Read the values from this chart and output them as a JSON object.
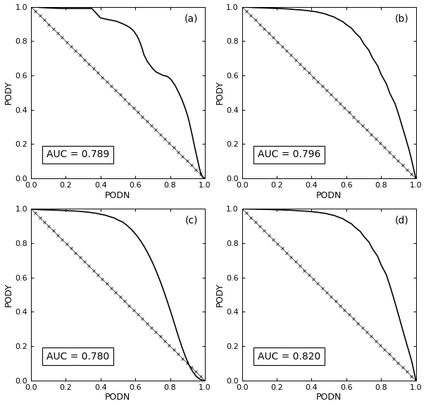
{
  "auc_values": [
    0.789,
    0.796,
    0.78,
    0.82
  ],
  "panel_labels": [
    "(a)",
    "(b)",
    "(c)",
    "(d)"
  ],
  "xlabel": "PODN",
  "ylabel": "PODY",
  "curve_color": "#000000",
  "diag_color": "#333333",
  "background_color": "#ffffff",
  "label_fontsize": 9,
  "tick_fontsize": 8,
  "panel_fontsize": 10,
  "auc_fontsize": 10,
  "curves": {
    "a": {
      "x": [
        0.0,
        0.01,
        0.02,
        0.03,
        0.05,
        0.08,
        0.1,
        0.12,
        0.15,
        0.18,
        0.2,
        0.25,
        0.3,
        0.35,
        0.4,
        0.43,
        0.45,
        0.46,
        0.47,
        0.48,
        0.49,
        0.5,
        0.51,
        0.52,
        0.53,
        0.55,
        0.57,
        0.59,
        0.6,
        0.61,
        0.62,
        0.63,
        0.64,
        0.65,
        0.67,
        0.7,
        0.72,
        0.74,
        0.75,
        0.76,
        0.77,
        0.78,
        0.79,
        0.8,
        0.81,
        0.82,
        0.83,
        0.84,
        0.85,
        0.86,
        0.87,
        0.88,
        0.89,
        0.9,
        0.91,
        0.92,
        0.93,
        0.94,
        0.95,
        0.96,
        0.97,
        0.98,
        0.99,
        1.0
      ],
      "y": [
        1.0,
        1.0,
        1.0,
        0.998,
        0.996,
        0.994,
        0.993,
        0.992,
        0.991,
        0.99,
        0.99,
        0.99,
        0.99,
        0.99,
        0.935,
        0.928,
        0.924,
        0.922,
        0.92,
        0.918,
        0.916,
        0.912,
        0.908,
        0.904,
        0.9,
        0.89,
        0.878,
        0.86,
        0.845,
        0.83,
        0.81,
        0.785,
        0.755,
        0.72,
        0.68,
        0.64,
        0.62,
        0.61,
        0.605,
        0.6,
        0.598,
        0.596,
        0.59,
        0.582,
        0.57,
        0.555,
        0.54,
        0.52,
        0.5,
        0.478,
        0.455,
        0.428,
        0.4,
        0.368,
        0.33,
        0.285,
        0.24,
        0.19,
        0.145,
        0.1,
        0.055,
        0.02,
        0.005,
        0.0
      ]
    },
    "b": {
      "x": [
        0.0,
        0.01,
        0.02,
        0.03,
        0.05,
        0.07,
        0.1,
        0.13,
        0.15,
        0.18,
        0.2,
        0.23,
        0.25,
        0.28,
        0.3,
        0.33,
        0.35,
        0.38,
        0.4,
        0.43,
        0.45,
        0.48,
        0.5,
        0.53,
        0.55,
        0.58,
        0.6,
        0.63,
        0.65,
        0.68,
        0.7,
        0.73,
        0.75,
        0.78,
        0.8,
        0.83,
        0.85,
        0.88,
        0.9,
        0.92,
        0.94,
        0.95,
        0.96,
        0.97,
        0.98,
        0.99,
        1.0
      ],
      "y": [
        1.0,
        0.999,
        0.998,
        0.997,
        0.996,
        0.995,
        0.994,
        0.993,
        0.992,
        0.991,
        0.99,
        0.989,
        0.988,
        0.986,
        0.984,
        0.982,
        0.98,
        0.977,
        0.974,
        0.97,
        0.965,
        0.958,
        0.95,
        0.94,
        0.928,
        0.913,
        0.896,
        0.875,
        0.85,
        0.82,
        0.785,
        0.746,
        0.703,
        0.656,
        0.606,
        0.552,
        0.496,
        0.436,
        0.375,
        0.308,
        0.24,
        0.205,
        0.17,
        0.13,
        0.088,
        0.042,
        0.0
      ]
    },
    "c": {
      "x": [
        0.0,
        0.01,
        0.02,
        0.03,
        0.05,
        0.07,
        0.1,
        0.13,
        0.15,
        0.18,
        0.2,
        0.23,
        0.25,
        0.28,
        0.3,
        0.33,
        0.35,
        0.38,
        0.4,
        0.43,
        0.45,
        0.48,
        0.5,
        0.53,
        0.55,
        0.57,
        0.59,
        0.61,
        0.63,
        0.65,
        0.67,
        0.69,
        0.71,
        0.73,
        0.75,
        0.77,
        0.79,
        0.81,
        0.83,
        0.85,
        0.87,
        0.89,
        0.91,
        0.93,
        0.95,
        0.97,
        0.99,
        1.0
      ],
      "y": [
        1.0,
        0.998,
        0.997,
        0.996,
        0.995,
        0.994,
        0.993,
        0.992,
        0.991,
        0.99,
        0.989,
        0.988,
        0.987,
        0.985,
        0.983,
        0.98,
        0.977,
        0.973,
        0.968,
        0.962,
        0.955,
        0.946,
        0.935,
        0.921,
        0.905,
        0.887,
        0.866,
        0.842,
        0.814,
        0.782,
        0.746,
        0.706,
        0.662,
        0.613,
        0.56,
        0.503,
        0.443,
        0.38,
        0.315,
        0.25,
        0.19,
        0.135,
        0.088,
        0.052,
        0.025,
        0.008,
        0.001,
        0.0
      ]
    },
    "d": {
      "x": [
        0.0,
        0.01,
        0.02,
        0.03,
        0.05,
        0.07,
        0.09,
        0.11,
        0.13,
        0.15,
        0.17,
        0.2,
        0.23,
        0.25,
        0.28,
        0.3,
        0.33,
        0.35,
        0.38,
        0.4,
        0.43,
        0.45,
        0.48,
        0.5,
        0.53,
        0.55,
        0.58,
        0.6,
        0.63,
        0.65,
        0.68,
        0.7,
        0.73,
        0.75,
        0.78,
        0.8,
        0.83,
        0.85,
        0.87,
        0.89,
        0.91,
        0.93,
        0.95,
        0.97,
        0.98,
        0.99,
        1.0
      ],
      "y": [
        1.0,
        1.0,
        0.999,
        0.999,
        0.998,
        0.998,
        0.997,
        0.997,
        0.996,
        0.996,
        0.995,
        0.994,
        0.993,
        0.992,
        0.991,
        0.99,
        0.988,
        0.987,
        0.985,
        0.983,
        0.98,
        0.977,
        0.973,
        0.968,
        0.961,
        0.953,
        0.942,
        0.929,
        0.912,
        0.892,
        0.868,
        0.84,
        0.806,
        0.768,
        0.723,
        0.673,
        0.616,
        0.554,
        0.488,
        0.418,
        0.346,
        0.274,
        0.203,
        0.135,
        0.095,
        0.048,
        0.0
      ]
    }
  }
}
